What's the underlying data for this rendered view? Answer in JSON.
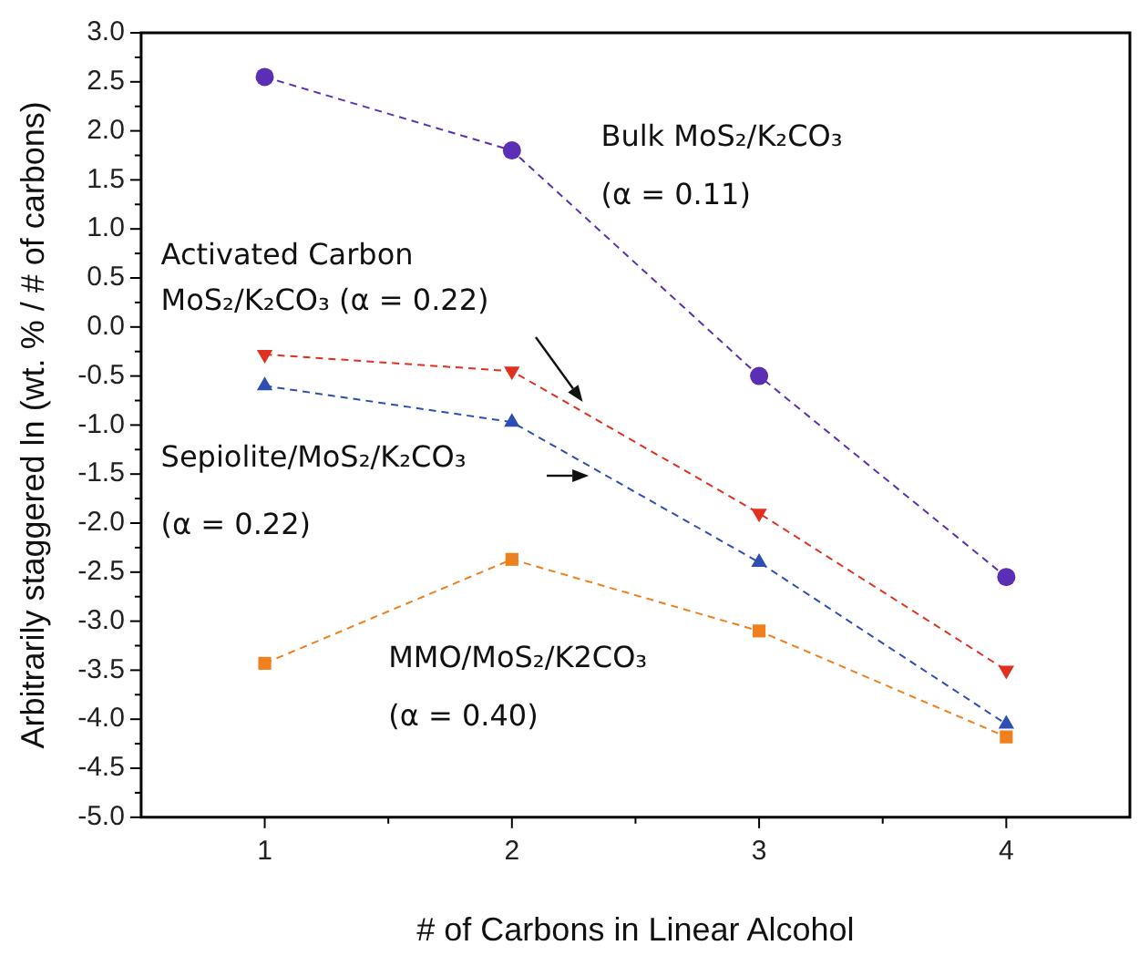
{
  "chart_data": {
    "type": "line",
    "xlabel": "# of Carbons in Linear Alcohol",
    "ylabel": "Arbitrarily staggered ln (wt. % / # of carbons)",
    "x": [
      1,
      2,
      3,
      4
    ],
    "series": [
      {
        "color": "#5b2fb5",
        "marker": "circle",
        "values": [
          2.55,
          1.8,
          -0.5,
          -2.55
        ]
      },
      {
        "color": "#e0301e",
        "marker": "triangle-down",
        "values": [
          -0.28,
          -0.45,
          -1.9,
          -3.5
        ]
      },
      {
        "color": "#2d4fb5",
        "marker": "triangle",
        "values": [
          -0.6,
          -0.97,
          -2.4,
          -4.05
        ]
      },
      {
        "color": "#f07f1e",
        "marker": "square",
        "values": [
          -3.43,
          -2.37,
          -3.1,
          -4.18
        ]
      }
    ],
    "line_style": "dashed",
    "grid": false,
    "legend": false,
    "xlim": [
      0.5,
      4.5
    ],
    "xticks": [
      1,
      {
        "value": 1.5,
        "label": null
      },
      2,
      {
        "value": 2.5,
        "label": null
      },
      3,
      {
        "value": 3.5,
        "label": null
      },
      4
    ],
    "ylim": [
      -5,
      3
    ],
    "yticks": [
      {
        "value": -5,
        "label": "-5.0"
      },
      {
        "value": -4.75,
        "label": null
      },
      {
        "value": -4.5,
        "label": "-4.5"
      },
      {
        "value": -4.25,
        "label": null
      },
      {
        "value": -4,
        "label": "-4.0"
      },
      {
        "value": -3.75,
        "label": null
      },
      {
        "value": -3.5,
        "label": "-3.5"
      },
      {
        "value": -3.25,
        "label": null
      },
      {
        "value": -3,
        "label": "-3.0"
      },
      {
        "value": -2.75,
        "label": null
      },
      {
        "value": -2.5,
        "label": "-2.5"
      },
      {
        "value": -2.25,
        "label": null
      },
      {
        "value": -2,
        "label": "-2.0"
      },
      {
        "value": -1.75,
        "label": null
      },
      {
        "value": -1.5,
        "label": "-1.5"
      },
      {
        "value": -1.25,
        "label": null
      },
      {
        "value": -1,
        "label": "-1.0"
      },
      {
        "value": -0.75,
        "label": null
      },
      {
        "value": -0.5,
        "label": "-0.5"
      },
      {
        "value": -0.25,
        "label": null
      },
      {
        "value": 0,
        "label": "0.0"
      },
      {
        "value": 0.25,
        "label": null
      },
      {
        "value": 0.5,
        "label": "0.5"
      },
      {
        "value": 0.75,
        "label": null
      },
      {
        "value": 1,
        "label": "1.0"
      },
      {
        "value": 1.25,
        "label": null
      },
      {
        "value": 1.5,
        "label": "1.5"
      },
      {
        "value": 1.75,
        "label": null
      },
      {
        "value": 2,
        "label": "2.0"
      },
      {
        "value": 2.25,
        "label": null
      },
      {
        "value": 2.5,
        "label": "2.5"
      },
      {
        "value": 2.75,
        "label": null
      },
      {
        "value": 3,
        "label": "3.0"
      }
    ],
    "annotations": [
      "Bulk MoS₂/K₂CO₃",
      "(α = 0.11)",
      "Activated Carbon",
      "MoS₂/K₂CO₃ (α = 0.22)",
      "Sepiolite/MoS₂/K₂CO₃",
      "(α = 0.22)",
      "MMO/MoS₂/K2CO₃",
      "(α = 0.40)"
    ]
  }
}
